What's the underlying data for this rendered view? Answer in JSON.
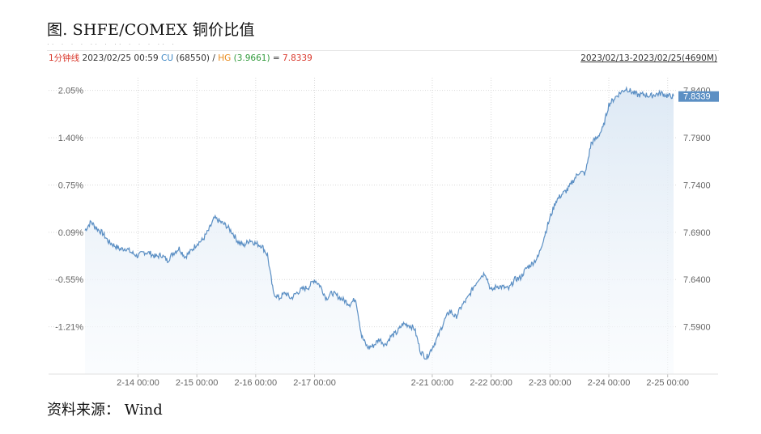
{
  "header": {
    "title": "图. SHFE/COMEX 铜价比值"
  },
  "footer": {
    "source": "资料来源： Wind"
  },
  "info": {
    "period": "1分钟线",
    "datetime": "2023/02/25 00:59",
    "cu_label": "CU",
    "cu_value": "(68550)",
    "separator": "/",
    "hg_label": "HG",
    "hg_value": "(3.9661)",
    "eq": "=",
    "ratio_value": "7.8339",
    "range": "2023/02/13-2023/02/25(4690M)"
  },
  "colors": {
    "line": "#5b8fc4",
    "area_top": "#dce8f4",
    "area_bottom": "#f7fafd",
    "tag": "#5b8fc4",
    "grid": "#d9d9d9"
  },
  "chart_data": {
    "type": "area",
    "title": "",
    "xlabel": "",
    "ylabel": "",
    "ylim": [
      7.54,
      7.85
    ],
    "left_ticks": [
      "2.05%",
      "1.40%",
      "0.75%",
      "0.09%",
      "-0.55%",
      "-1.21%"
    ],
    "right_ticks": [
      "7.8400",
      "7.7900",
      "7.7400",
      "7.6900",
      "7.6400",
      "7.5900"
    ],
    "right_tick_values": [
      7.84,
      7.79,
      7.74,
      7.69,
      7.64,
      7.59
    ],
    "x_ticks": [
      "2-14 00:00",
      "2-15 00:00",
      "2-16 00:00",
      "2-17 00:00",
      "2-21 00:00",
      "2-22 00:00",
      "2-23 00:00",
      "2-24 00:00",
      "2-25 00:00"
    ],
    "x_tick_index": [
      0.09,
      0.19,
      0.29,
      0.39,
      0.59,
      0.69,
      0.79,
      0.89,
      0.99
    ],
    "last_value": "7.8339",
    "series": [
      {
        "x": [
          0.0,
          0.01,
          0.02,
          0.03,
          0.04,
          0.05,
          0.06,
          0.07,
          0.08,
          0.09,
          0.1,
          0.11,
          0.12,
          0.13,
          0.14,
          0.15,
          0.16,
          0.17,
          0.18,
          0.19,
          0.2,
          0.21,
          0.22,
          0.23,
          0.24,
          0.25,
          0.26,
          0.27,
          0.28,
          0.29,
          0.3,
          0.31,
          0.32,
          0.33,
          0.34,
          0.35,
          0.36,
          0.37,
          0.38,
          0.39,
          0.4,
          0.41,
          0.42,
          0.43,
          0.44,
          0.45,
          0.46,
          0.47,
          0.48,
          0.49,
          0.5,
          0.51,
          0.52,
          0.53,
          0.54,
          0.55,
          0.56,
          0.57,
          0.58,
          0.59,
          0.6,
          0.61,
          0.62,
          0.63,
          0.64,
          0.65,
          0.66,
          0.67,
          0.68,
          0.69,
          0.7,
          0.71,
          0.72,
          0.73,
          0.74,
          0.75,
          0.76,
          0.77,
          0.78,
          0.79,
          0.8,
          0.81,
          0.82,
          0.83,
          0.84,
          0.85,
          0.86,
          0.87,
          0.88,
          0.89,
          0.9,
          0.91,
          0.92,
          0.93,
          0.94,
          0.95,
          0.96,
          0.97,
          0.98,
          0.99,
          1.0
        ],
        "values": [
          7.692,
          7.701,
          7.694,
          7.689,
          7.68,
          7.676,
          7.672,
          7.673,
          7.668,
          7.665,
          7.669,
          7.668,
          7.664,
          7.666,
          7.66,
          7.668,
          7.673,
          7.664,
          7.67,
          7.678,
          7.682,
          7.692,
          7.705,
          7.701,
          7.697,
          7.69,
          7.68,
          7.676,
          7.682,
          7.678,
          7.676,
          7.666,
          7.626,
          7.62,
          7.626,
          7.62,
          7.626,
          7.63,
          7.632,
          7.64,
          7.633,
          7.62,
          7.626,
          7.622,
          7.618,
          7.614,
          7.62,
          7.58,
          7.568,
          7.57,
          7.577,
          7.571,
          7.58,
          7.584,
          7.593,
          7.592,
          7.588,
          7.564,
          7.557,
          7.568,
          7.58,
          7.596,
          7.607,
          7.6,
          7.612,
          7.62,
          7.632,
          7.642,
          7.647,
          7.628,
          7.633,
          7.632,
          7.63,
          7.64,
          7.642,
          7.652,
          7.657,
          7.664,
          7.685,
          7.705,
          7.723,
          7.73,
          7.735,
          7.745,
          7.754,
          7.752,
          7.784,
          7.79,
          7.8,
          7.825,
          7.832,
          7.838,
          7.842,
          7.838,
          7.835,
          7.836,
          7.834,
          7.836,
          7.837,
          7.834,
          7.834
        ]
      }
    ]
  }
}
